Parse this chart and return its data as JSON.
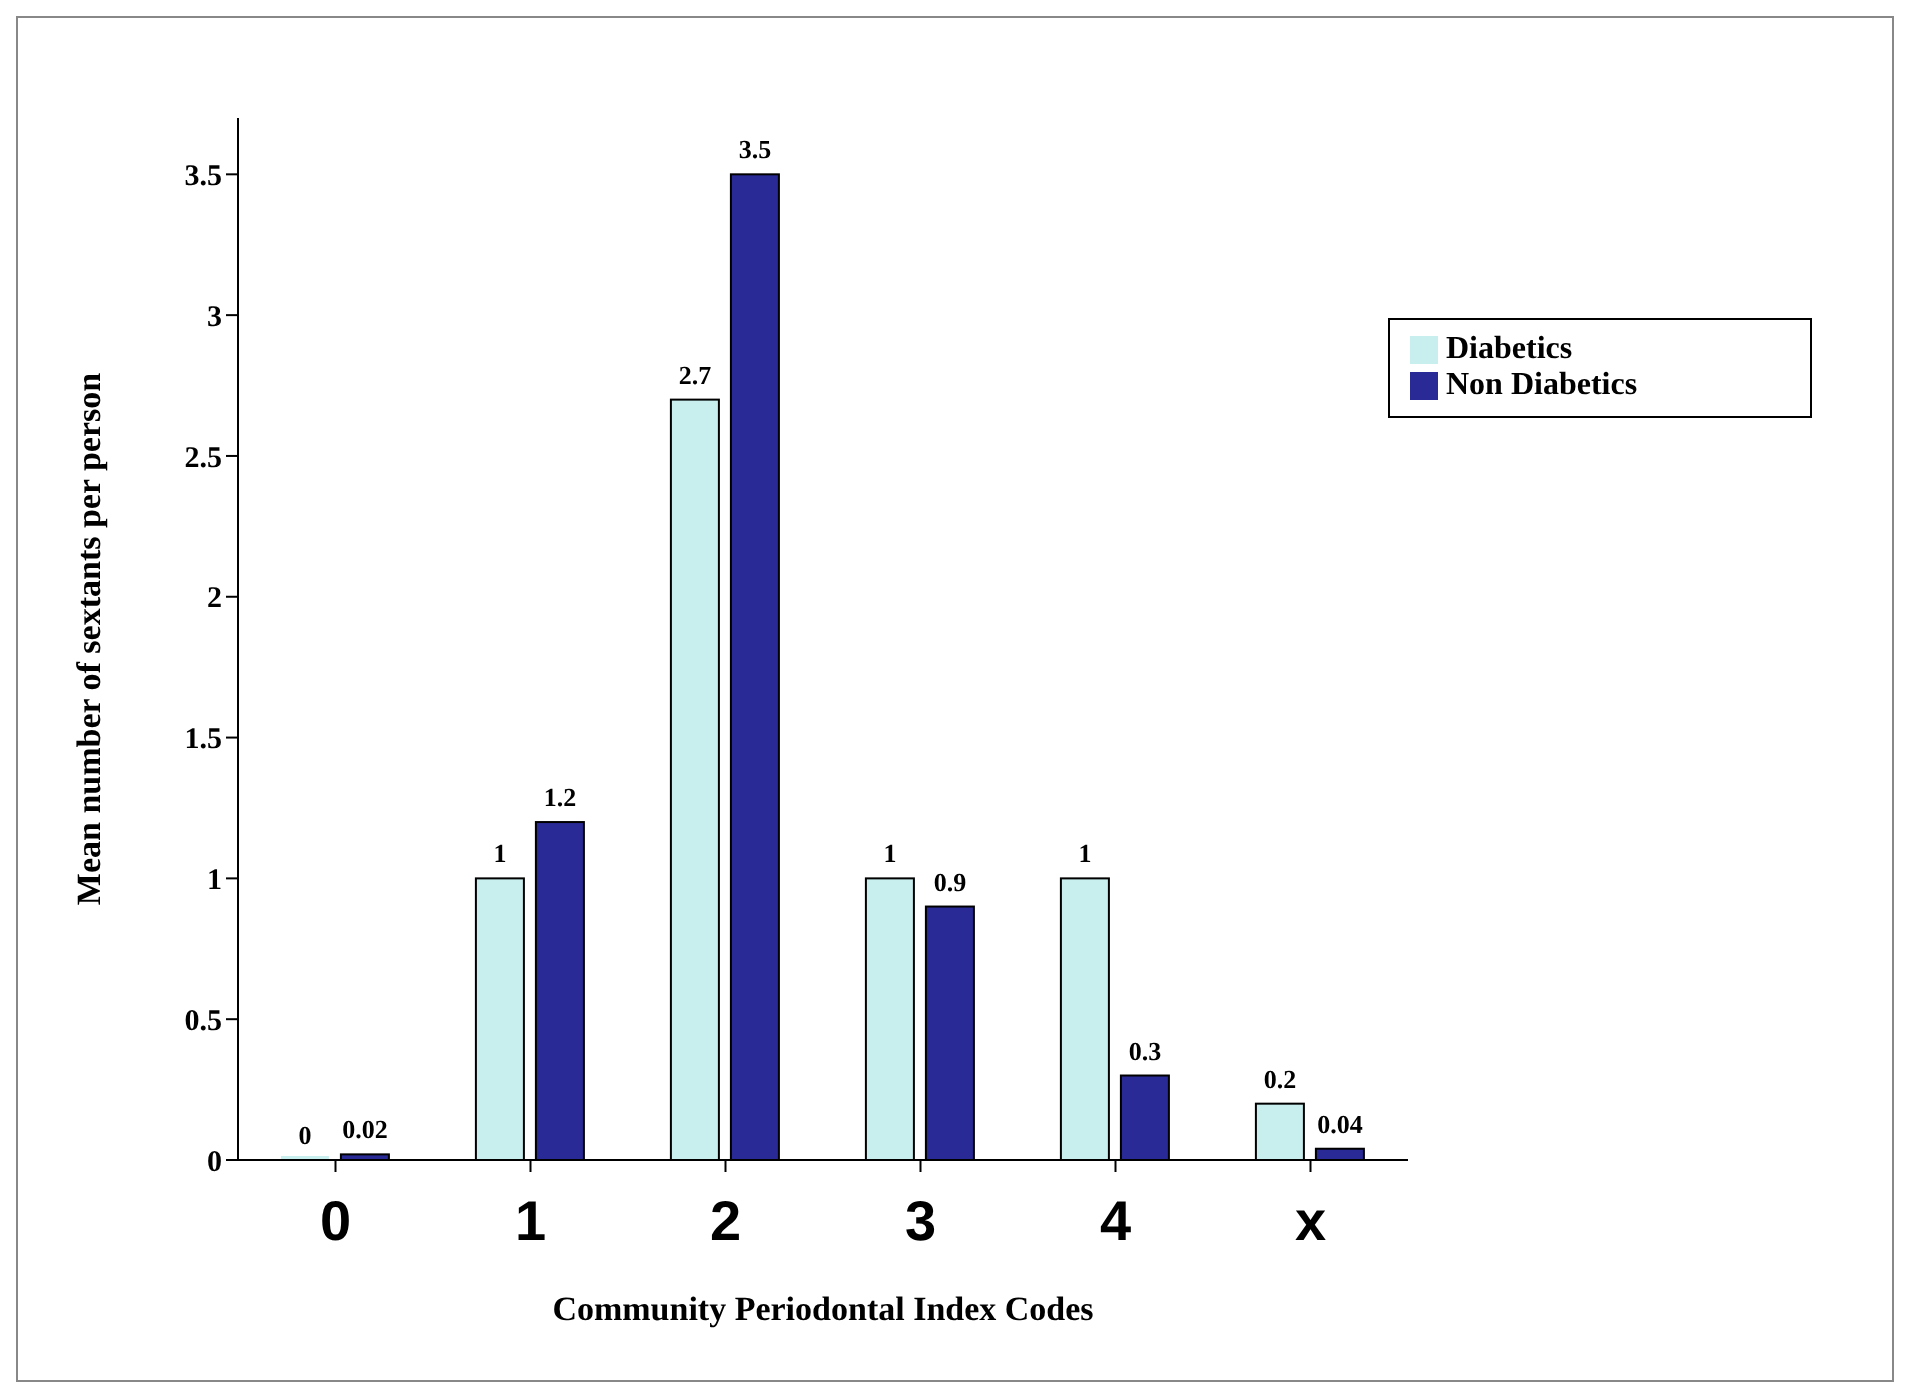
{
  "chart_data": {
    "type": "bar",
    "categories": [
      "0",
      "1",
      "2",
      "3",
      "4",
      "x"
    ],
    "series": [
      {
        "name": "Diabetics",
        "color": "#c8eeee",
        "values": [
          0,
          1,
          2.7,
          1,
          1,
          0.2
        ]
      },
      {
        "name": "Non Diabetics",
        "color": "#2a2a96",
        "values": [
          0.02,
          1.2,
          3.5,
          0.9,
          0.3,
          0.04
        ]
      }
    ],
    "xlabel": "Community Periodontal Index Codes",
    "ylabel": "Mean number of sextants per person",
    "ylim": [
      0,
      3.7
    ],
    "yticks": [
      0,
      0.5,
      1,
      1.5,
      2,
      2.5,
      3,
      3.5
    ],
    "data_labels": true,
    "legend": "top right",
    "grid": false
  }
}
